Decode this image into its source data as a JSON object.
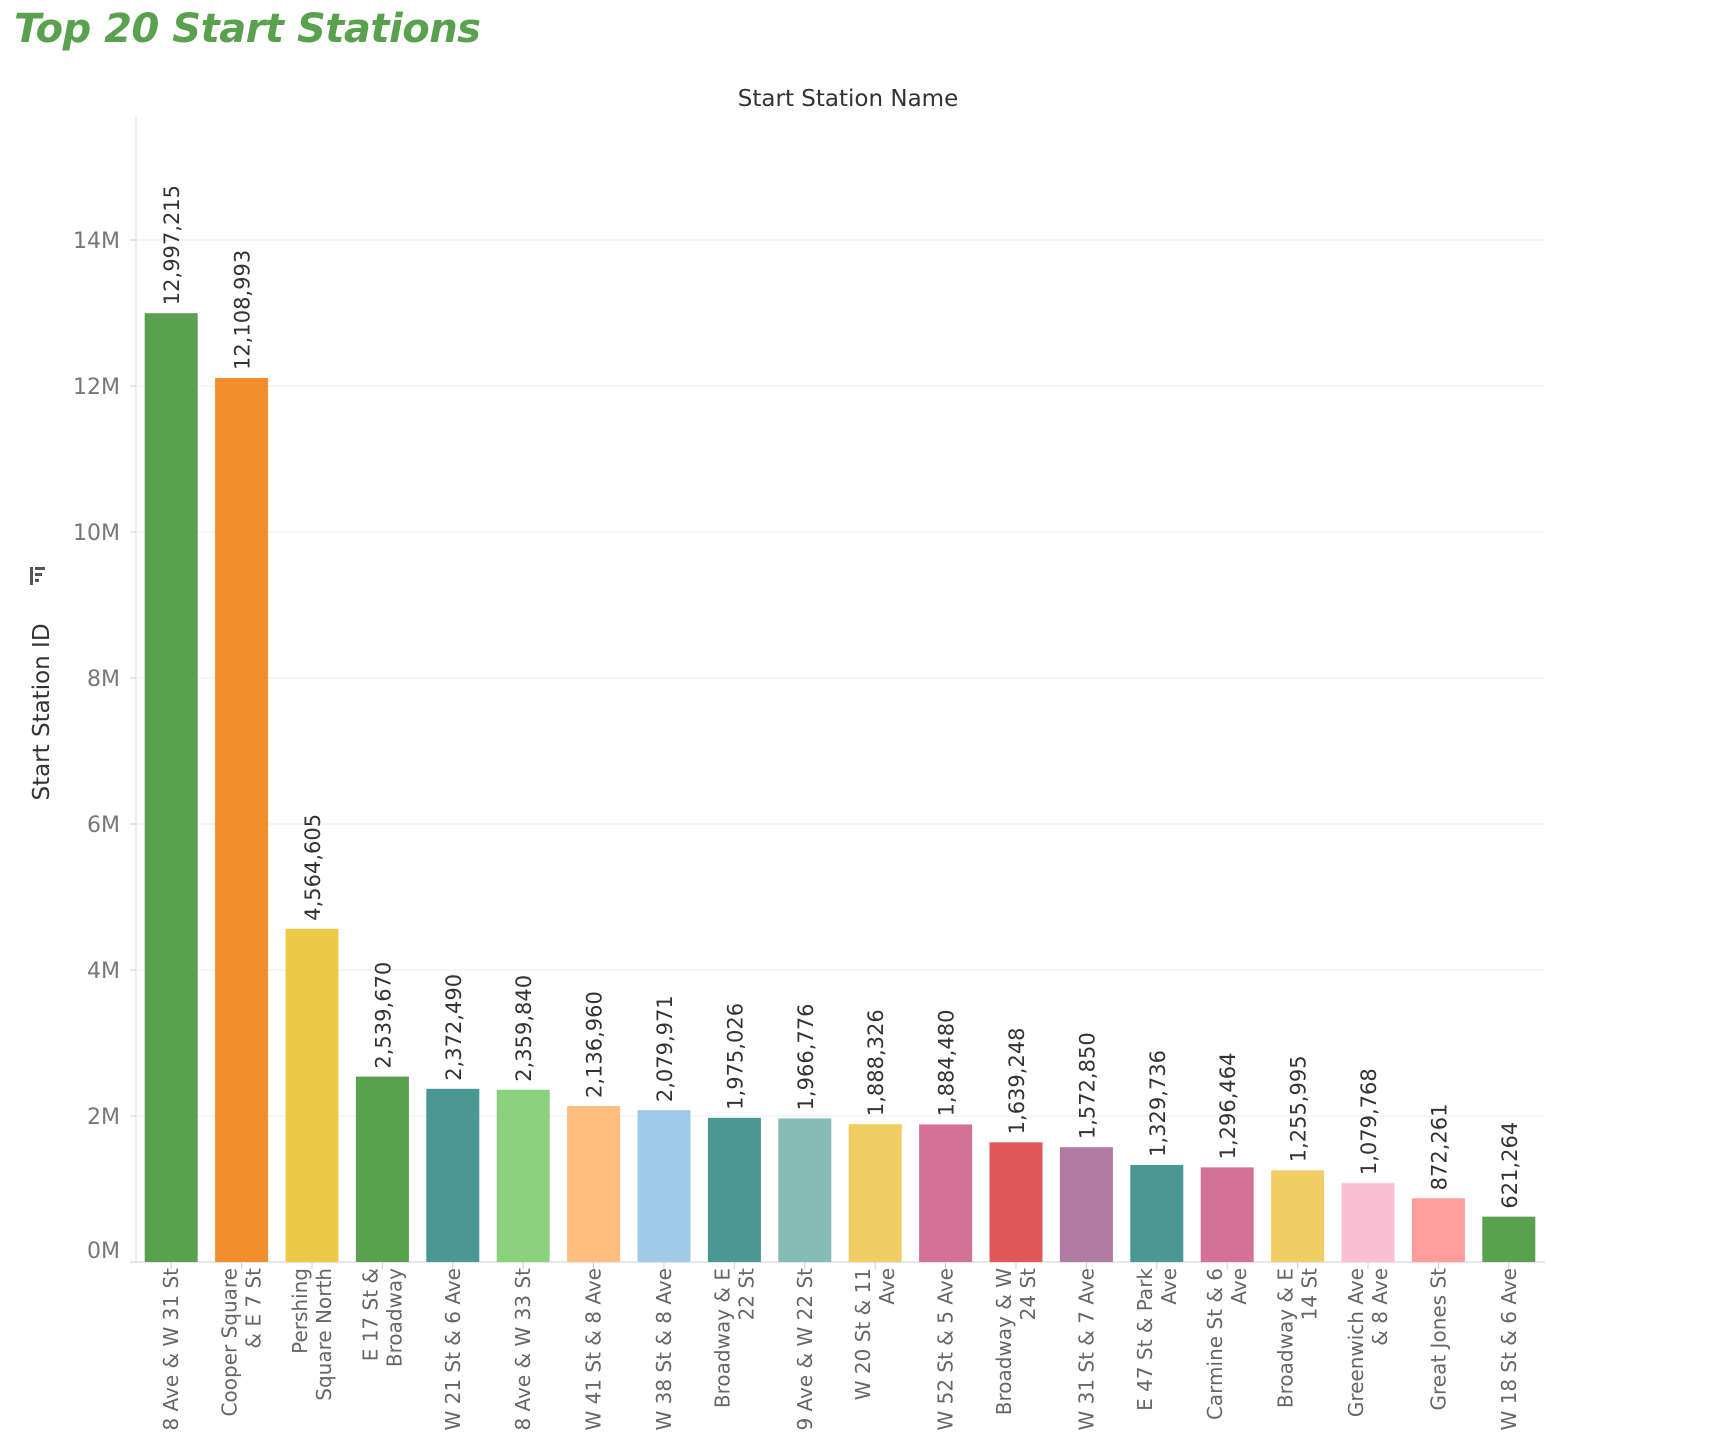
{
  "page": {
    "title": "Top 20 Start Stations"
  },
  "colors": {
    "title": "#59a14f"
  },
  "icons": {
    "sort": "sort-descending-icon"
  },
  "chart_data": {
    "type": "bar",
    "title": "Top 20 Start Stations",
    "header_title": "Start Station Name",
    "ylabel": "Start Station ID",
    "xlabel": "",
    "ylim": [
      0,
      15600000
    ],
    "grid": true,
    "y_ticks": [
      {
        "value": 0,
        "label": "0M"
      },
      {
        "value": 2000000,
        "label": "2M"
      },
      {
        "value": 4000000,
        "label": "4M"
      },
      {
        "value": 6000000,
        "label": "6M"
      },
      {
        "value": 8000000,
        "label": "8M"
      },
      {
        "value": 10000000,
        "label": "10M"
      },
      {
        "value": 12000000,
        "label": "12M"
      },
      {
        "value": 14000000,
        "label": "14M"
      }
    ],
    "categories": [
      "8 Ave & W 31 St",
      "Cooper Square & E 7 St",
      "Pershing Square North",
      "E 17 St & Broadway",
      "W 21 St & 6 Ave",
      "8 Ave & W 33 St",
      "W 41 St & 8 Ave",
      "W 38 St & 8 Ave",
      "Broadway & E 22 St",
      "9 Ave & W 22 St",
      "W 20 St & 11 Ave",
      "W 52 St & 5 Ave",
      "Broadway & W 24 St",
      "W 31 St & 7 Ave",
      "E 47 St & Park Ave",
      "Carmine St & 6 Ave",
      "Broadway & E 14 St",
      "Greenwich Ave & 8 Ave",
      "Great Jones St",
      "W 18 St & 6 Ave"
    ],
    "category_lines": [
      [
        "8 Ave & W 31 St"
      ],
      [
        "Cooper Square",
        "& E 7 St"
      ],
      [
        "Pershing",
        "Square North"
      ],
      [
        "E 17 St &",
        "Broadway"
      ],
      [
        "W 21 St & 6 Ave"
      ],
      [
        "8 Ave & W 33 St"
      ],
      [
        "W 41 St & 8 Ave"
      ],
      [
        "W 38 St & 8 Ave"
      ],
      [
        "Broadway & E",
        "22 St"
      ],
      [
        "9 Ave & W 22 St"
      ],
      [
        "W 20 St & 11",
        "Ave"
      ],
      [
        "W 52 St & 5 Ave"
      ],
      [
        "Broadway & W",
        "24 St"
      ],
      [
        "W 31 St & 7 Ave"
      ],
      [
        "E 47 St & Park",
        "Ave"
      ],
      [
        "Carmine St & 6",
        "Ave"
      ],
      [
        "Broadway & E",
        "14 St"
      ],
      [
        "Greenwich Ave",
        "& 8 Ave"
      ],
      [
        "Great Jones St"
      ],
      [
        "W 18 St & 6 Ave"
      ]
    ],
    "values": [
      12997215,
      12108993,
      4564605,
      2539670,
      2372490,
      2359840,
      2136960,
      2079971,
      1975026,
      1966776,
      1888326,
      1884480,
      1639248,
      1572850,
      1329736,
      1296464,
      1255995,
      1079768,
      872261,
      621264
    ],
    "value_labels": [
      "12,997,215",
      "12,108,993",
      "4,564,605",
      "2,539,670",
      "2,372,490",
      "2,359,840",
      "2,136,960",
      "2,079,971",
      "1,975,026",
      "1,966,776",
      "1,888,326",
      "1,884,480",
      "1,639,248",
      "1,572,850",
      "1,329,736",
      "1,296,464",
      "1,255,995",
      "1,079,768",
      "872,261",
      "621,264"
    ],
    "bar_colors": [
      "#59a14f",
      "#f28e2b",
      "#edc948",
      "#59a14f",
      "#499894",
      "#8cd17d",
      "#ffbe7d",
      "#a0cbe8",
      "#499894",
      "#86bcb6",
      "#f1ce63",
      "#d37295",
      "#e15759",
      "#b07aa1",
      "#499894",
      "#d37295",
      "#f1ce63",
      "#fabfd2",
      "#ff9d9a",
      "#59a14f"
    ]
  }
}
